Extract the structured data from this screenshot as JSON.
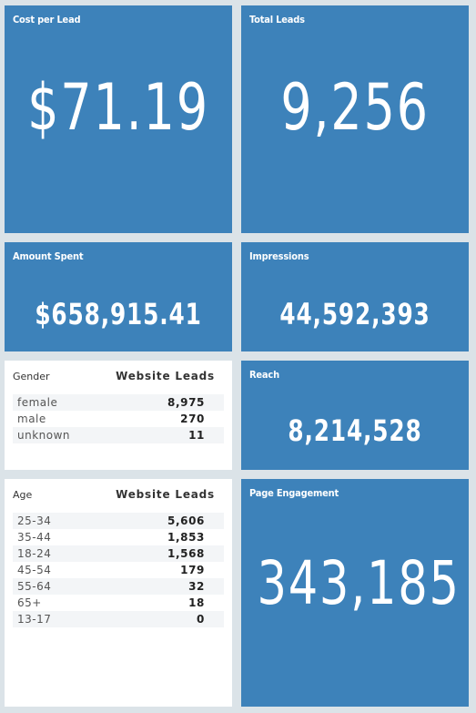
{
  "cost_per_lead": {
    "title": "Cost per Lead",
    "value": "$71.19"
  },
  "total_leads": {
    "title": "Total Leads",
    "value": "9,256"
  },
  "amount_spent": {
    "title": "Amount Spent",
    "value": "$658,915.41"
  },
  "impressions": {
    "title": "Impressions",
    "value": "44,592,393"
  },
  "reach": {
    "title": "Reach",
    "value": "8,214,528"
  },
  "page_engagement": {
    "title": "Page Engagement",
    "value": "343,185"
  },
  "gender_table": {
    "col1": "Gender",
    "col2": "Website Leads",
    "rows": [
      {
        "label": "female",
        "value": "8,975"
      },
      {
        "label": "male",
        "value": "270"
      },
      {
        "label": "unknown",
        "value": "11"
      }
    ]
  },
  "age_table": {
    "col1": "Age",
    "col2": "Website Leads",
    "rows": [
      {
        "label": "25-34",
        "value": "5,606"
      },
      {
        "label": "35-44",
        "value": "1,853"
      },
      {
        "label": "18-24",
        "value": "1,568"
      },
      {
        "label": "45-54",
        "value": "179"
      },
      {
        "label": "55-64",
        "value": "32"
      },
      {
        "label": "65+",
        "value": "18"
      },
      {
        "label": "13-17",
        "value": "0"
      }
    ]
  }
}
